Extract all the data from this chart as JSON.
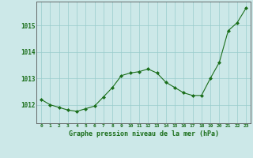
{
  "x": [
    0,
    1,
    2,
    3,
    4,
    5,
    6,
    7,
    8,
    9,
    10,
    11,
    12,
    13,
    14,
    15,
    16,
    17,
    18,
    19,
    20,
    21,
    22,
    23
  ],
  "y": [
    1012.2,
    1012.0,
    1011.9,
    1011.8,
    1011.75,
    1011.85,
    1011.95,
    1012.3,
    1012.65,
    1013.1,
    1013.2,
    1013.25,
    1013.35,
    1013.2,
    1012.85,
    1012.65,
    1012.45,
    1012.35,
    1012.35,
    1013.0,
    1013.6,
    1014.8,
    1015.1,
    1015.65
  ],
  "line_color": "#1a6e1a",
  "marker": "D",
  "marker_size": 2,
  "bg_color": "#cce8e8",
  "grid_color": "#99cccc",
  "xlabel": "Graphe pression niveau de la mer (hPa)",
  "xlabel_color": "#1a6e1a",
  "tick_color": "#1a6e1a",
  "ylabel_ticks": [
    1012,
    1013,
    1014,
    1015
  ],
  "ylim": [
    1011.3,
    1015.9
  ],
  "xlim": [
    -0.5,
    23.5
  ],
  "xtick_labels": [
    "0",
    "1",
    "2",
    "3",
    "4",
    "5",
    "6",
    "7",
    "8",
    "9",
    "10",
    "11",
    "12",
    "13",
    "14",
    "15",
    "16",
    "17",
    "18",
    "19",
    "20",
    "21",
    "22",
    "23"
  ]
}
